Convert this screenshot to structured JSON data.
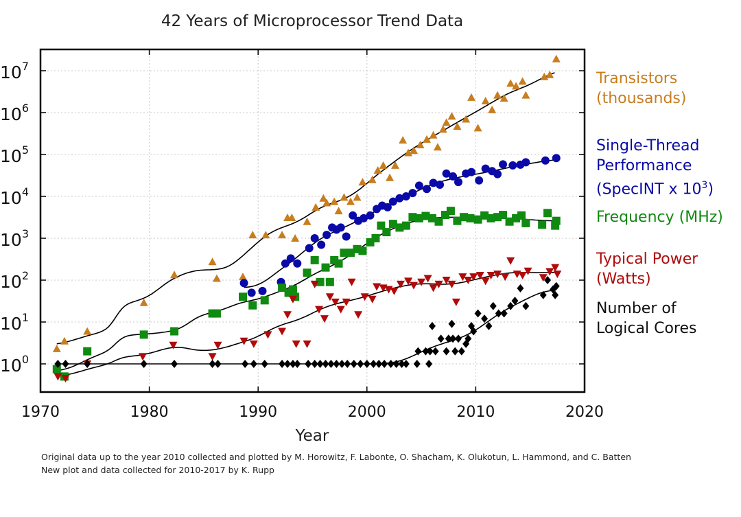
{
  "chart_data": {
    "type": "scatter",
    "title": "42 Years of Microprocessor Trend Data",
    "xlabel": "Year",
    "ylabel": "",
    "xlim": [
      1970,
      2020
    ],
    "ylim": [
      0.2,
      20000000
    ],
    "yscale": "log",
    "x_ticks": [
      "1970",
      "1980",
      "1990",
      "2000",
      "2010",
      "2020"
    ],
    "y_ticks": [
      {
        "base": "10",
        "exp": "0"
      },
      {
        "base": "10",
        "exp": "1"
      },
      {
        "base": "10",
        "exp": "2"
      },
      {
        "base": "10",
        "exp": "3"
      },
      {
        "base": "10",
        "exp": "4"
      },
      {
        "base": "10",
        "exp": "5"
      },
      {
        "base": "10",
        "exp": "6"
      },
      {
        "base": "10",
        "exp": "7"
      }
    ],
    "grid": true,
    "legend_position": "right",
    "series": [
      {
        "key": "transistors",
        "name": "Transistors (thousands)",
        "label_lines": [
          "Transistors",
          "(thousands)"
        ],
        "color": "#c87d1e",
        "marker": "triangle-up",
        "points": [
          [
            1971.5,
            2.3
          ],
          [
            1972.2,
            3.5
          ],
          [
            1974.3,
            6
          ],
          [
            1979.5,
            29
          ],
          [
            1982.3,
            134
          ],
          [
            1985.8,
            275
          ],
          [
            1986.2,
            110
          ],
          [
            1988.6,
            120
          ],
          [
            1989.5,
            1200
          ],
          [
            1990.7,
            1200
          ],
          [
            1992.2,
            1200
          ],
          [
            1992.7,
            3100
          ],
          [
            1993.1,
            3100
          ],
          [
            1993.4,
            1000
          ],
          [
            1994.5,
            2500
          ],
          [
            1995.3,
            5500
          ],
          [
            1996,
            9000
          ],
          [
            1996.3,
            7000
          ],
          [
            1997,
            7500
          ],
          [
            1997.4,
            4500
          ],
          [
            1997.9,
            9500
          ],
          [
            1998.5,
            7500
          ],
          [
            1999.1,
            9500
          ],
          [
            1999.6,
            22000
          ],
          [
            2000.5,
            25000
          ],
          [
            2001,
            42000
          ],
          [
            2001.5,
            55000
          ],
          [
            2002.1,
            28000
          ],
          [
            2002.6,
            55000
          ],
          [
            2003.3,
            220000
          ],
          [
            2003.8,
            110000
          ],
          [
            2004.3,
            125000
          ],
          [
            2004.9,
            170000
          ],
          [
            2005.5,
            230000
          ],
          [
            2006.1,
            290000
          ],
          [
            2006.5,
            150000
          ],
          [
            2007,
            400000
          ],
          [
            2007.3,
            580000
          ],
          [
            2007.8,
            820000
          ],
          [
            2008.3,
            470000
          ],
          [
            2009.1,
            700000
          ],
          [
            2009.6,
            2300000
          ],
          [
            2010.2,
            430000
          ],
          [
            2010.9,
            1900000
          ],
          [
            2011.5,
            1170000
          ],
          [
            2012,
            2600000
          ],
          [
            2012.6,
            2200000
          ],
          [
            2013.2,
            5000000
          ],
          [
            2013.7,
            4300000
          ],
          [
            2014.3,
            5600000
          ],
          [
            2014.6,
            2600000
          ],
          [
            2016.3,
            7200000
          ],
          [
            2016.8,
            8000000
          ],
          [
            2017.4,
            19200000
          ]
        ]
      },
      {
        "key": "performance",
        "name": "Single-Thread Performance (SpecINT x 10^3)",
        "label_lines": [
          "Single-Thread",
          "Performance"
        ],
        "label_last_prefix": "(SpecINT x 10",
        "label_last_sup": "3",
        "label_last_suffix": ")",
        "color": "#0a0aa8",
        "marker": "circle",
        "points": [
          [
            1988.7,
            85
          ],
          [
            1989.4,
            50
          ],
          [
            1990.4,
            55
          ],
          [
            1992.1,
            90
          ],
          [
            1992.5,
            250
          ],
          [
            1993,
            330
          ],
          [
            1993.6,
            250
          ],
          [
            1994.7,
            580
          ],
          [
            1995.2,
            1000
          ],
          [
            1995.8,
            700
          ],
          [
            1996.3,
            1200
          ],
          [
            1996.8,
            1800
          ],
          [
            1997.2,
            1600
          ],
          [
            1997.6,
            1800
          ],
          [
            1998.1,
            1100
          ],
          [
            1998.7,
            3500
          ],
          [
            1999.2,
            2600
          ],
          [
            1999.7,
            3000
          ],
          [
            2000.3,
            3500
          ],
          [
            2000.9,
            5000
          ],
          [
            2001.4,
            6000
          ],
          [
            2001.9,
            5500
          ],
          [
            2002.4,
            7500
          ],
          [
            2003,
            9000
          ],
          [
            2003.6,
            10000
          ],
          [
            2004.2,
            12000
          ],
          [
            2004.8,
            18000
          ],
          [
            2005.5,
            15000
          ],
          [
            2006.1,
            21000
          ],
          [
            2006.7,
            19000
          ],
          [
            2007.3,
            35000
          ],
          [
            2007.9,
            30000
          ],
          [
            2008.4,
            22000
          ],
          [
            2009.1,
            35000
          ],
          [
            2009.6,
            38000
          ],
          [
            2010.3,
            24000
          ],
          [
            2010.9,
            46000
          ],
          [
            2011.5,
            40000
          ],
          [
            2012,
            34000
          ],
          [
            2012.5,
            58000
          ],
          [
            2013.4,
            55000
          ],
          [
            2014.1,
            57000
          ],
          [
            2014.6,
            65000
          ],
          [
            2016.4,
            72000
          ],
          [
            2017.4,
            82000
          ]
        ]
      },
      {
        "key": "frequency",
        "name": "Frequency (MHz)",
        "label_lines": [
          "Frequency (MHz)"
        ],
        "color": "#108a10",
        "marker": "square",
        "points": [
          [
            1971.5,
            0.75
          ],
          [
            1972.2,
            0.5
          ],
          [
            1974.3,
            2
          ],
          [
            1979.5,
            5
          ],
          [
            1982.3,
            6
          ],
          [
            1985.8,
            16
          ],
          [
            1986.2,
            16
          ],
          [
            1988.6,
            40
          ],
          [
            1989.5,
            25
          ],
          [
            1990.6,
            33
          ],
          [
            1992.2,
            66
          ],
          [
            1992.8,
            50
          ],
          [
            1993.2,
            60
          ],
          [
            1993.4,
            40
          ],
          [
            1994.5,
            150
          ],
          [
            1995.2,
            300
          ],
          [
            1995.7,
            90
          ],
          [
            1996.2,
            200
          ],
          [
            1996.6,
            90
          ],
          [
            1997,
            300
          ],
          [
            1997.4,
            250
          ],
          [
            1997.9,
            450
          ],
          [
            1998.5,
            450
          ],
          [
            1999.1,
            550
          ],
          [
            1999.6,
            500
          ],
          [
            2000.3,
            800
          ],
          [
            2000.8,
            1000
          ],
          [
            2001.3,
            2000
          ],
          [
            2001.8,
            1400
          ],
          [
            2002.4,
            2200
          ],
          [
            2003,
            1800
          ],
          [
            2003.6,
            2000
          ],
          [
            2004.2,
            3200
          ],
          [
            2004.8,
            3000
          ],
          [
            2005.4,
            3400
          ],
          [
            2006,
            3000
          ],
          [
            2006.6,
            2500
          ],
          [
            2007.2,
            3600
          ],
          [
            2007.7,
            4500
          ],
          [
            2008.3,
            2600
          ],
          [
            2008.9,
            3200
          ],
          [
            2009.5,
            3000
          ],
          [
            2010.2,
            2800
          ],
          [
            2010.8,
            3500
          ],
          [
            2011.4,
            3000
          ],
          [
            2012,
            3200
          ],
          [
            2012.5,
            3600
          ],
          [
            2013.1,
            2500
          ],
          [
            2013.7,
            3000
          ],
          [
            2014.2,
            3500
          ],
          [
            2014.6,
            2300
          ],
          [
            2016.1,
            2100
          ],
          [
            2016.6,
            4000
          ],
          [
            2017.3,
            2000
          ],
          [
            2017.4,
            2600
          ]
        ]
      },
      {
        "key": "power",
        "name": "Typical Power (Watts)",
        "label_lines": [
          "Typical Power",
          "(Watts)"
        ],
        "color": "#b00a0a",
        "marker": "triangle-down",
        "points": [
          [
            1971.6,
            0.5
          ],
          [
            1972.3,
            0.45
          ],
          [
            1974.3,
            1
          ],
          [
            1979.4,
            1.5
          ],
          [
            1982.2,
            2.8
          ],
          [
            1985.8,
            1.5
          ],
          [
            1986.3,
            2.8
          ],
          [
            1988.7,
            3.5
          ],
          [
            1989.6,
            3
          ],
          [
            1990.9,
            5
          ],
          [
            1992.2,
            6
          ],
          [
            1992.7,
            15
          ],
          [
            1993.2,
            35
          ],
          [
            1993.5,
            3
          ],
          [
            1994.5,
            3
          ],
          [
            1995.2,
            80
          ],
          [
            1995.6,
            20
          ],
          [
            1996.1,
            12
          ],
          [
            1996.6,
            40
          ],
          [
            1997.1,
            30
          ],
          [
            1997.6,
            20
          ],
          [
            1998.1,
            30
          ],
          [
            1998.6,
            90
          ],
          [
            1999.2,
            15
          ],
          [
            1999.8,
            40
          ],
          [
            2000.5,
            35
          ],
          [
            2000.9,
            70
          ],
          [
            2001.5,
            65
          ],
          [
            2002,
            60
          ],
          [
            2002.5,
            55
          ],
          [
            2003.1,
            80
          ],
          [
            2003.8,
            95
          ],
          [
            2004.3,
            75
          ],
          [
            2005,
            90
          ],
          [
            2005.6,
            110
          ],
          [
            2006.1,
            65
          ],
          [
            2006.6,
            80
          ],
          [
            2007.3,
            100
          ],
          [
            2007.8,
            80
          ],
          [
            2008.2,
            30
          ],
          [
            2008.8,
            120
          ],
          [
            2009.3,
            100
          ],
          [
            2009.8,
            120
          ],
          [
            2010.4,
            130
          ],
          [
            2010.9,
            95
          ],
          [
            2011.4,
            130
          ],
          [
            2012,
            140
          ],
          [
            2012.7,
            120
          ],
          [
            2013.2,
            290
          ],
          [
            2013.8,
            140
          ],
          [
            2014.3,
            130
          ],
          [
            2014.8,
            165
          ],
          [
            2016.2,
            115
          ],
          [
            2016.8,
            160
          ],
          [
            2017.3,
            200
          ],
          [
            2017.5,
            140
          ]
        ]
      },
      {
        "key": "cores",
        "name": "Number of Logical Cores",
        "label_lines": [
          "Number of",
          "Logical Cores"
        ],
        "color": "#000000",
        "marker": "diamond",
        "points": [
          [
            1971.6,
            1
          ],
          [
            1972.3,
            1
          ],
          [
            1974.3,
            1
          ],
          [
            1979.5,
            1
          ],
          [
            1982.3,
            1
          ],
          [
            1985.8,
            1
          ],
          [
            1986.3,
            1
          ],
          [
            1988.8,
            1
          ],
          [
            1989.6,
            1
          ],
          [
            1990.6,
            1
          ],
          [
            1992.2,
            1
          ],
          [
            1992.7,
            1
          ],
          [
            1993.2,
            1
          ],
          [
            1993.6,
            1
          ],
          [
            1994.6,
            1
          ],
          [
            1995.2,
            1
          ],
          [
            1995.7,
            1
          ],
          [
            1996.2,
            1
          ],
          [
            1996.7,
            1
          ],
          [
            1997.2,
            1
          ],
          [
            1997.7,
            1
          ],
          [
            1998.2,
            1
          ],
          [
            1998.8,
            1
          ],
          [
            1999.4,
            1
          ],
          [
            2000,
            1
          ],
          [
            2000.6,
            1
          ],
          [
            2001.1,
            1
          ],
          [
            2001.6,
            1
          ],
          [
            2002.2,
            1
          ],
          [
            2002.7,
            1
          ],
          [
            2003.2,
            1
          ],
          [
            2003.6,
            1
          ],
          [
            2004.6,
            1
          ],
          [
            2004.7,
            2
          ],
          [
            2005.4,
            2
          ],
          [
            2005.7,
            1
          ],
          [
            2005.8,
            2
          ],
          [
            2006,
            8
          ],
          [
            2006.3,
            2
          ],
          [
            2006.8,
            4
          ],
          [
            2007.3,
            2
          ],
          [
            2007.5,
            4
          ],
          [
            2007.8,
            9
          ],
          [
            2007.9,
            4
          ],
          [
            2008.1,
            2
          ],
          [
            2008.4,
            4
          ],
          [
            2008.7,
            2
          ],
          [
            2009.1,
            3
          ],
          [
            2009.3,
            4
          ],
          [
            2009.6,
            8
          ],
          [
            2009.8,
            6
          ],
          [
            2010.2,
            16
          ],
          [
            2010.8,
            12
          ],
          [
            2011.2,
            8
          ],
          [
            2011.6,
            24
          ],
          [
            2012.1,
            16
          ],
          [
            2012.6,
            16
          ],
          [
            2013.2,
            24
          ],
          [
            2013.6,
            32
          ],
          [
            2014.1,
            64
          ],
          [
            2014.6,
            24
          ],
          [
            2016.2,
            44
          ],
          [
            2016.6,
            100
          ],
          [
            2017.1,
            60
          ],
          [
            2017.3,
            44
          ],
          [
            2017.4,
            72
          ]
        ]
      }
    ],
    "credits": [
      "Original data up to the year 2010 collected and plotted by M. Horowitz, F. Labonte, O. Shacham, K. Olukotun, L. Hammond, and C. Batten",
      "New plot and data collected for 2010-2017 by K. Rupp"
    ]
  }
}
